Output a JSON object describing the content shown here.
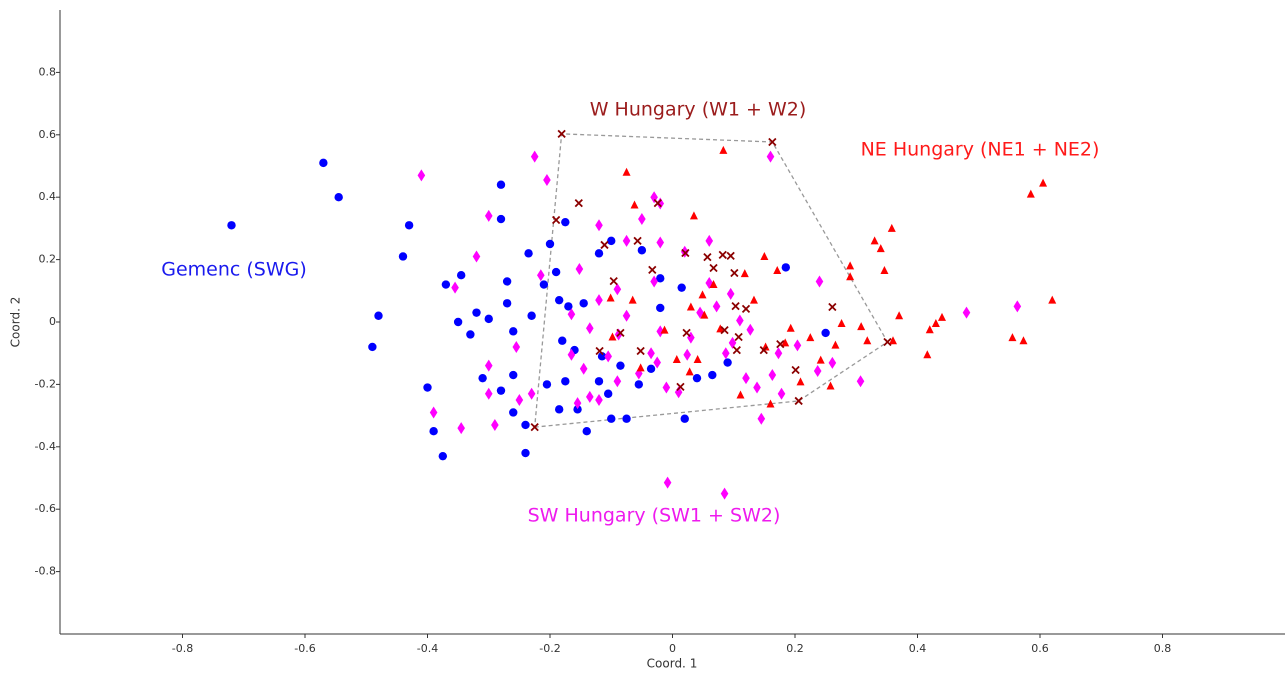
{
  "chart_data": {
    "type": "scatter",
    "xlabel": "Coord. 1",
    "ylabel": "Coord. 2",
    "xlim": [
      -1,
      1
    ],
    "ylim": [
      -1,
      1
    ],
    "xticks": [
      -0.8,
      -0.6,
      -0.4,
      -0.2,
      0,
      0.2,
      0.4,
      0.6,
      0.8
    ],
    "yticks": [
      -0.8,
      -0.6,
      -0.4,
      -0.2,
      0,
      0.2,
      0.4,
      0.6,
      0.8
    ],
    "grid": false,
    "annotations": [
      {
        "text": "Gemenc (SWG)",
        "color": "#1a1aee"
      },
      {
        "text": "W Hungary (W1 + W2)",
        "color": "#9b1c1c"
      },
      {
        "text": "NE Hungary (NE1 + NE2)",
        "color": "#ff1a1a"
      },
      {
        "text": "SW Hungary (SW1 + SW2)",
        "color": "#ee1aee"
      }
    ],
    "series": [
      {
        "color": "#0000ff",
        "marker": "circle",
        "x": [
          -0.72,
          -0.57,
          -0.545,
          -0.43,
          -0.44,
          -0.48,
          -0.49,
          -0.4,
          -0.39,
          -0.375,
          -0.28,
          -0.28,
          -0.345,
          -0.37,
          -0.32,
          -0.35,
          -0.3,
          -0.33,
          -0.27,
          -0.235,
          -0.27,
          -0.26,
          -0.31,
          -0.26,
          -0.28,
          -0.26,
          -0.24,
          -0.24,
          -0.23,
          -0.2,
          -0.19,
          -0.21,
          -0.175,
          -0.185,
          -0.17,
          -0.145,
          -0.18,
          -0.16,
          -0.205,
          -0.175,
          -0.185,
          -0.155,
          -0.14,
          -0.12,
          -0.1,
          -0.115,
          -0.12,
          -0.105,
          -0.075,
          -0.085,
          -0.05,
          -0.02,
          -0.02,
          0.015,
          -0.035,
          -0.055,
          0.04,
          0.065,
          0.02,
          0.09,
          0.185,
          0.25,
          -0.1
        ],
        "y": [
          0.31,
          0.51,
          0.4,
          0.31,
          0.21,
          0.02,
          -0.08,
          -0.21,
          -0.35,
          -0.43,
          0.44,
          0.33,
          0.15,
          0.12,
          0.03,
          0,
          0.01,
          -0.04,
          0.13,
          0.22,
          0.06,
          -0.03,
          -0.18,
          -0.17,
          -0.22,
          -0.29,
          -0.33,
          -0.42,
          0.02,
          0.25,
          0.16,
          0.12,
          0.32,
          0.07,
          0.05,
          0.06,
          -0.06,
          -0.09,
          -0.2,
          -0.19,
          -0.28,
          -0.28,
          -0.35,
          0.22,
          0.26,
          -0.11,
          -0.19,
          -0.23,
          -0.31,
          -0.14,
          0.23,
          0.14,
          0.045,
          0.11,
          -0.15,
          -0.2,
          -0.18,
          -0.17,
          -0.31,
          -0.13,
          0.175,
          -0.035,
          -0.31
        ]
      },
      {
        "color": "#ff00ff",
        "marker": "diamond",
        "x": [
          -0.41,
          -0.225,
          -0.205,
          0.16,
          -0.3,
          -0.32,
          -0.355,
          -0.39,
          -0.345,
          -0.29,
          -0.3,
          -0.3,
          -0.255,
          -0.23,
          -0.25,
          -0.215,
          -0.152,
          -0.12,
          -0.075,
          -0.03,
          -0.02,
          -0.05,
          -0.12,
          -0.165,
          -0.135,
          -0.09,
          -0.075,
          -0.105,
          -0.145,
          -0.165,
          -0.135,
          -0.155,
          -0.12,
          -0.09,
          -0.055,
          -0.01,
          0.01,
          -0.02,
          -0.025,
          -0.03,
          -0.02,
          0.02,
          0.045,
          0.03,
          0.06,
          0.06,
          0.095,
          0.11,
          0.127,
          0.098,
          0.087,
          0.12,
          0.138,
          0.163,
          0.145,
          0.178,
          0.173,
          0.204,
          0.237,
          0.261,
          0.307,
          0.24,
          0.48,
          0.563,
          -0.008,
          0.085,
          -0.035,
          0.072,
          0.024,
          -0.088
        ],
        "y": [
          0.47,
          0.53,
          0.455,
          0.53,
          0.34,
          0.21,
          0.11,
          -0.29,
          -0.34,
          -0.33,
          -0.23,
          -0.14,
          -0.08,
          -0.23,
          -0.25,
          0.15,
          0.17,
          0.31,
          0.26,
          0.4,
          0.38,
          0.33,
          0.07,
          0.025,
          -0.02,
          0.105,
          0.02,
          -0.11,
          -0.15,
          -0.105,
          -0.24,
          -0.26,
          -0.25,
          -0.19,
          -0.165,
          -0.21,
          -0.225,
          -0.03,
          -0.13,
          0.13,
          0.255,
          0.225,
          0.03,
          -0.05,
          0.26,
          0.125,
          0.09,
          0.005,
          -0.025,
          -0.067,
          -0.1,
          -0.18,
          -0.21,
          -0.17,
          -0.31,
          -0.23,
          -0.1,
          -0.075,
          -0.157,
          -0.131,
          -0.19,
          0.13,
          0.03,
          0.05,
          -0.515,
          -0.55,
          -0.1,
          0.05,
          -0.105,
          -0.04
        ]
      },
      {
        "color": "#ff0000",
        "marker": "triangle",
        "x": [
          -0.075,
          0.035,
          0.083,
          0.605,
          0.585,
          0.62,
          0.573,
          0.555,
          0.358,
          0.33,
          0.34,
          0.346,
          0.29,
          0.29,
          0.37,
          0.44,
          0.43,
          0.42,
          0.416,
          0.36,
          0.318,
          0.308,
          0.276,
          0.225,
          0.193,
          0.15,
          0.171,
          0.118,
          0.133,
          0.067,
          0.049,
          0.052,
          0.078,
          0.041,
          0.007,
          0.028,
          -0.052,
          -0.013,
          -0.062,
          -0.065,
          -0.101,
          -0.098,
          0.111,
          0.16,
          0.209,
          0.242,
          0.266,
          0.152,
          0.184,
          0.258,
          0.03
        ],
        "y": [
          0.48,
          0.34,
          0.55,
          0.445,
          0.41,
          0.07,
          -0.06,
          -0.05,
          0.3,
          0.26,
          0.235,
          0.165,
          0.18,
          0.145,
          0.02,
          0.015,
          -0.005,
          -0.025,
          -0.105,
          -0.06,
          -0.06,
          -0.015,
          -0.005,
          -0.05,
          -0.02,
          0.21,
          0.165,
          0.155,
          0.07,
          0.12,
          0.087,
          0.022,
          -0.022,
          -0.12,
          -0.12,
          -0.16,
          -0.147,
          -0.026,
          0.375,
          0.07,
          0.077,
          -0.048,
          -0.234,
          -0.263,
          -0.192,
          -0.122,
          -0.074,
          -0.08,
          -0.067,
          -0.205,
          0.048
        ]
      },
      {
        "color": "#8b0000",
        "marker": "cross",
        "hull": true,
        "x": [
          -0.181,
          0.163,
          -0.19,
          -0.153,
          -0.024,
          -0.111,
          -0.057,
          0.021,
          -0.033,
          0.057,
          0.082,
          0.095,
          -0.096,
          0.067,
          0.101,
          0.103,
          0.12,
          0.085,
          0.108,
          -0.085,
          0.023,
          -0.119,
          -0.052,
          0.105,
          0.149,
          0.176,
          0.261,
          0.201,
          0.013,
          0.206,
          0.351,
          -0.225
        ],
        "y": [
          0.603,
          0.577,
          0.327,
          0.381,
          0.381,
          0.247,
          0.26,
          0.221,
          0.167,
          0.208,
          0.215,
          0.212,
          0.131,
          0.173,
          0.157,
          0.051,
          0.042,
          -0.026,
          -0.048,
          -0.035,
          -0.035,
          -0.093,
          -0.093,
          -0.09,
          -0.09,
          -0.071,
          0.048,
          -0.154,
          -0.208,
          -0.253,
          -0.064,
          -0.337
        ]
      }
    ]
  }
}
